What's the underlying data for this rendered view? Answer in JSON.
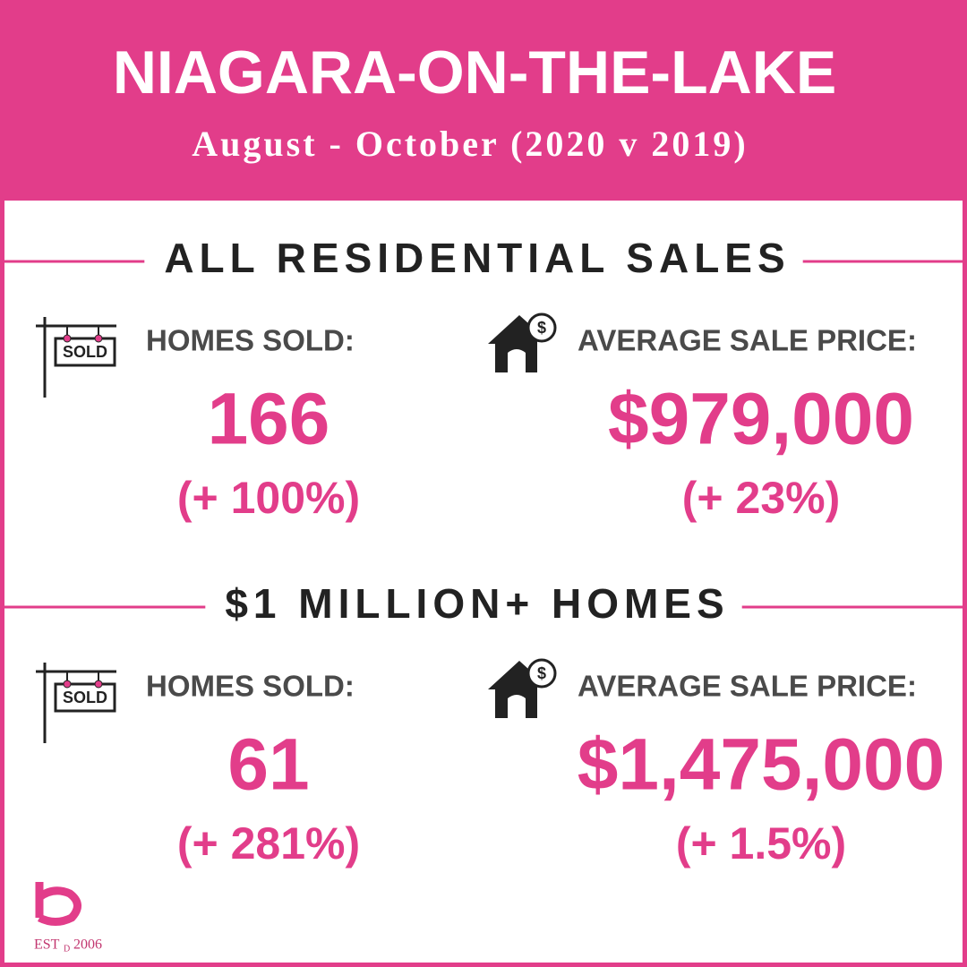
{
  "header": {
    "title": "NIAGARA-ON-THE-LAKE",
    "subtitle": "August - October (2020 v 2019)"
  },
  "sections": [
    {
      "heading": "ALL RESIDENTIAL SALES",
      "stats": [
        {
          "icon_text": "SOLD",
          "label": "HOMES SOLD:",
          "value": "166",
          "change": "(+ 100%)"
        },
        {
          "icon_text": "$",
          "label": "AVERAGE SALE PRICE:",
          "value": "$979,000",
          "change": "(+ 23%)"
        }
      ]
    },
    {
      "heading": "$1 MILLION+ HOMES",
      "stats": [
        {
          "icon_text": "SOLD",
          "label": "HOMES SOLD:",
          "value": "61",
          "change": "(+ 281%)"
        },
        {
          "icon_text": "$",
          "label": "AVERAGE SALE PRICE:",
          "value": "$1,475,000",
          "change": "(+ 1.5%)"
        }
      ]
    }
  ],
  "logo": {
    "est": "EST",
    "d": "D",
    "year": "2006"
  }
}
